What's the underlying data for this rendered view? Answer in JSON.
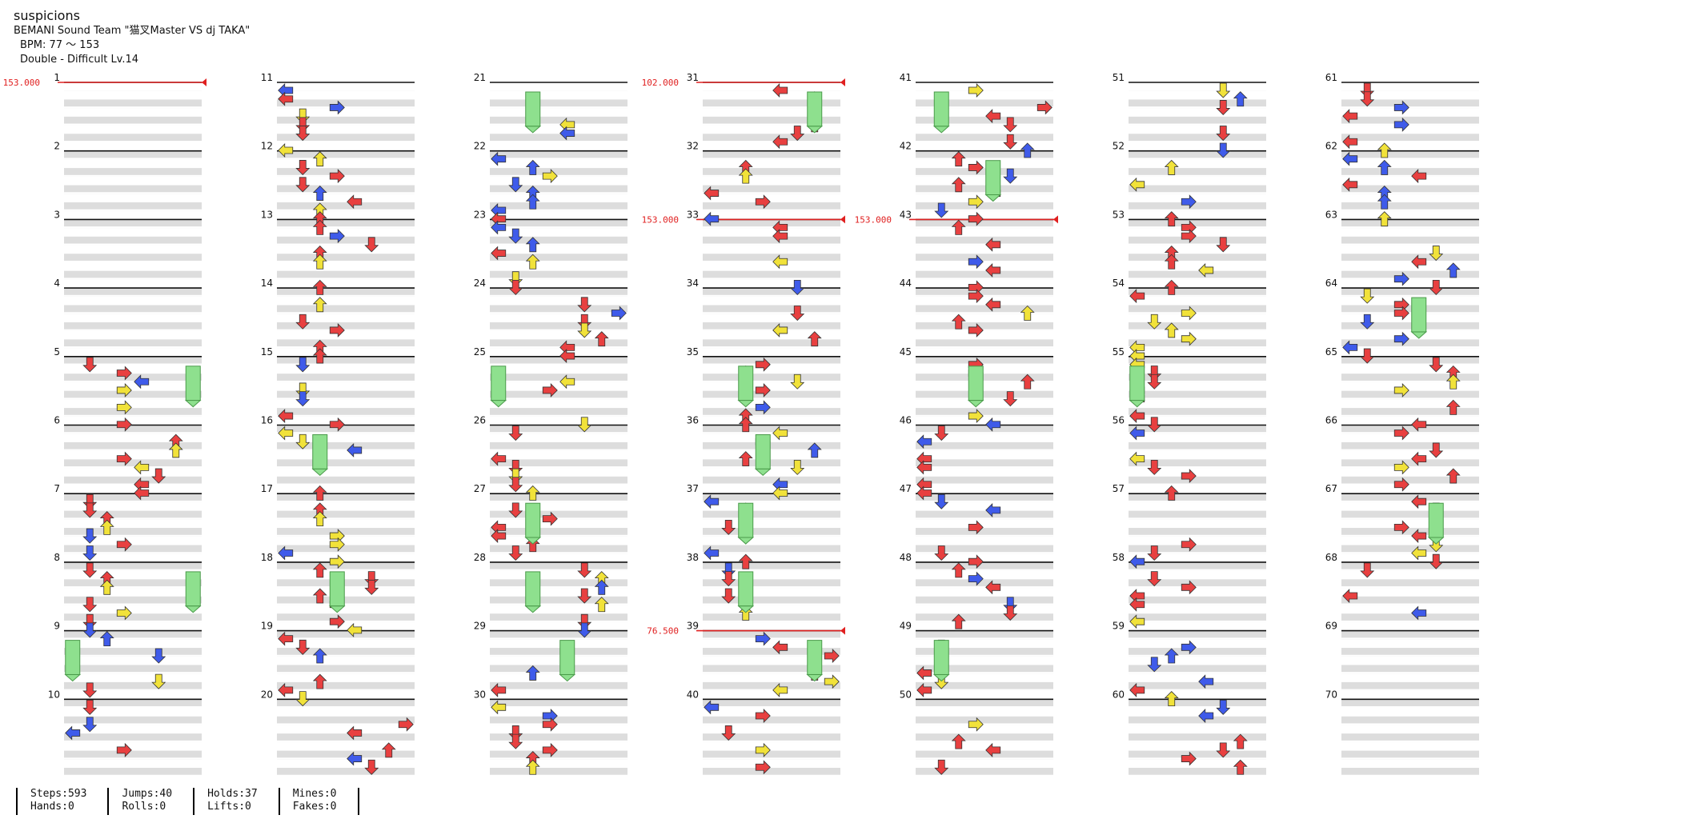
{
  "song": {
    "title": "suspicions",
    "artist": "BEMANI Sound Team \"猫叉Master VS dj TAKA\"",
    "bpm_text": "BPM: 77 ～ 153",
    "difficulty_text": "Double - Difficult  Lv.14"
  },
  "colors": {
    "left": "#e84040",
    "down": "#3b5fe8",
    "up": "#e84040",
    "right": "#e84040",
    "yellow": "#f1e23a",
    "blue": "#3f5bea",
    "orange": "#f39a3a",
    "magenta": "#d845d8",
    "hold": "#8ee08e",
    "bpm_line": "#e02020",
    "measure_line": "#111111",
    "band": "#dddddd"
  },
  "measures": [
    "1",
    "2",
    "3",
    "4",
    "5",
    "6",
    "7",
    "8",
    "9",
    "10",
    "11",
    "12",
    "13",
    "14",
    "15",
    "16",
    "17",
    "18",
    "19",
    "20",
    "21",
    "22",
    "23",
    "24",
    "25",
    "26",
    "27",
    "28",
    "29",
    "30",
    "31",
    "32",
    "33",
    "34",
    "35",
    "36",
    "37",
    "38",
    "39",
    "40",
    "41",
    "42",
    "43",
    "44",
    "45",
    "46",
    "47",
    "48",
    "49",
    "50",
    "51",
    "52",
    "53",
    "54",
    "55",
    "56",
    "57",
    "58",
    "59",
    "60",
    "61",
    "62",
    "63",
    "64",
    "65",
    "66",
    "67",
    "68",
    "69",
    "70"
  ],
  "bpm_changes": [
    {
      "measure": 1,
      "bpm": "153.000"
    },
    {
      "measure": 31,
      "bpm": "102.000"
    },
    {
      "measure": 33,
      "bpm": "153.000"
    },
    {
      "measure": 39,
      "bpm": "76.500"
    },
    {
      "measure": 43,
      "bpm": "153.000"
    }
  ],
  "stats": {
    "steps": "Steps:593",
    "hands": "Hands:0",
    "jumps": "Jumps:40",
    "rolls": "Rolls:0",
    "holds": "Holds:37",
    "lifts": "Lifts:0",
    "mines": "Mines:0",
    "fakes": "Fakes:0"
  }
}
